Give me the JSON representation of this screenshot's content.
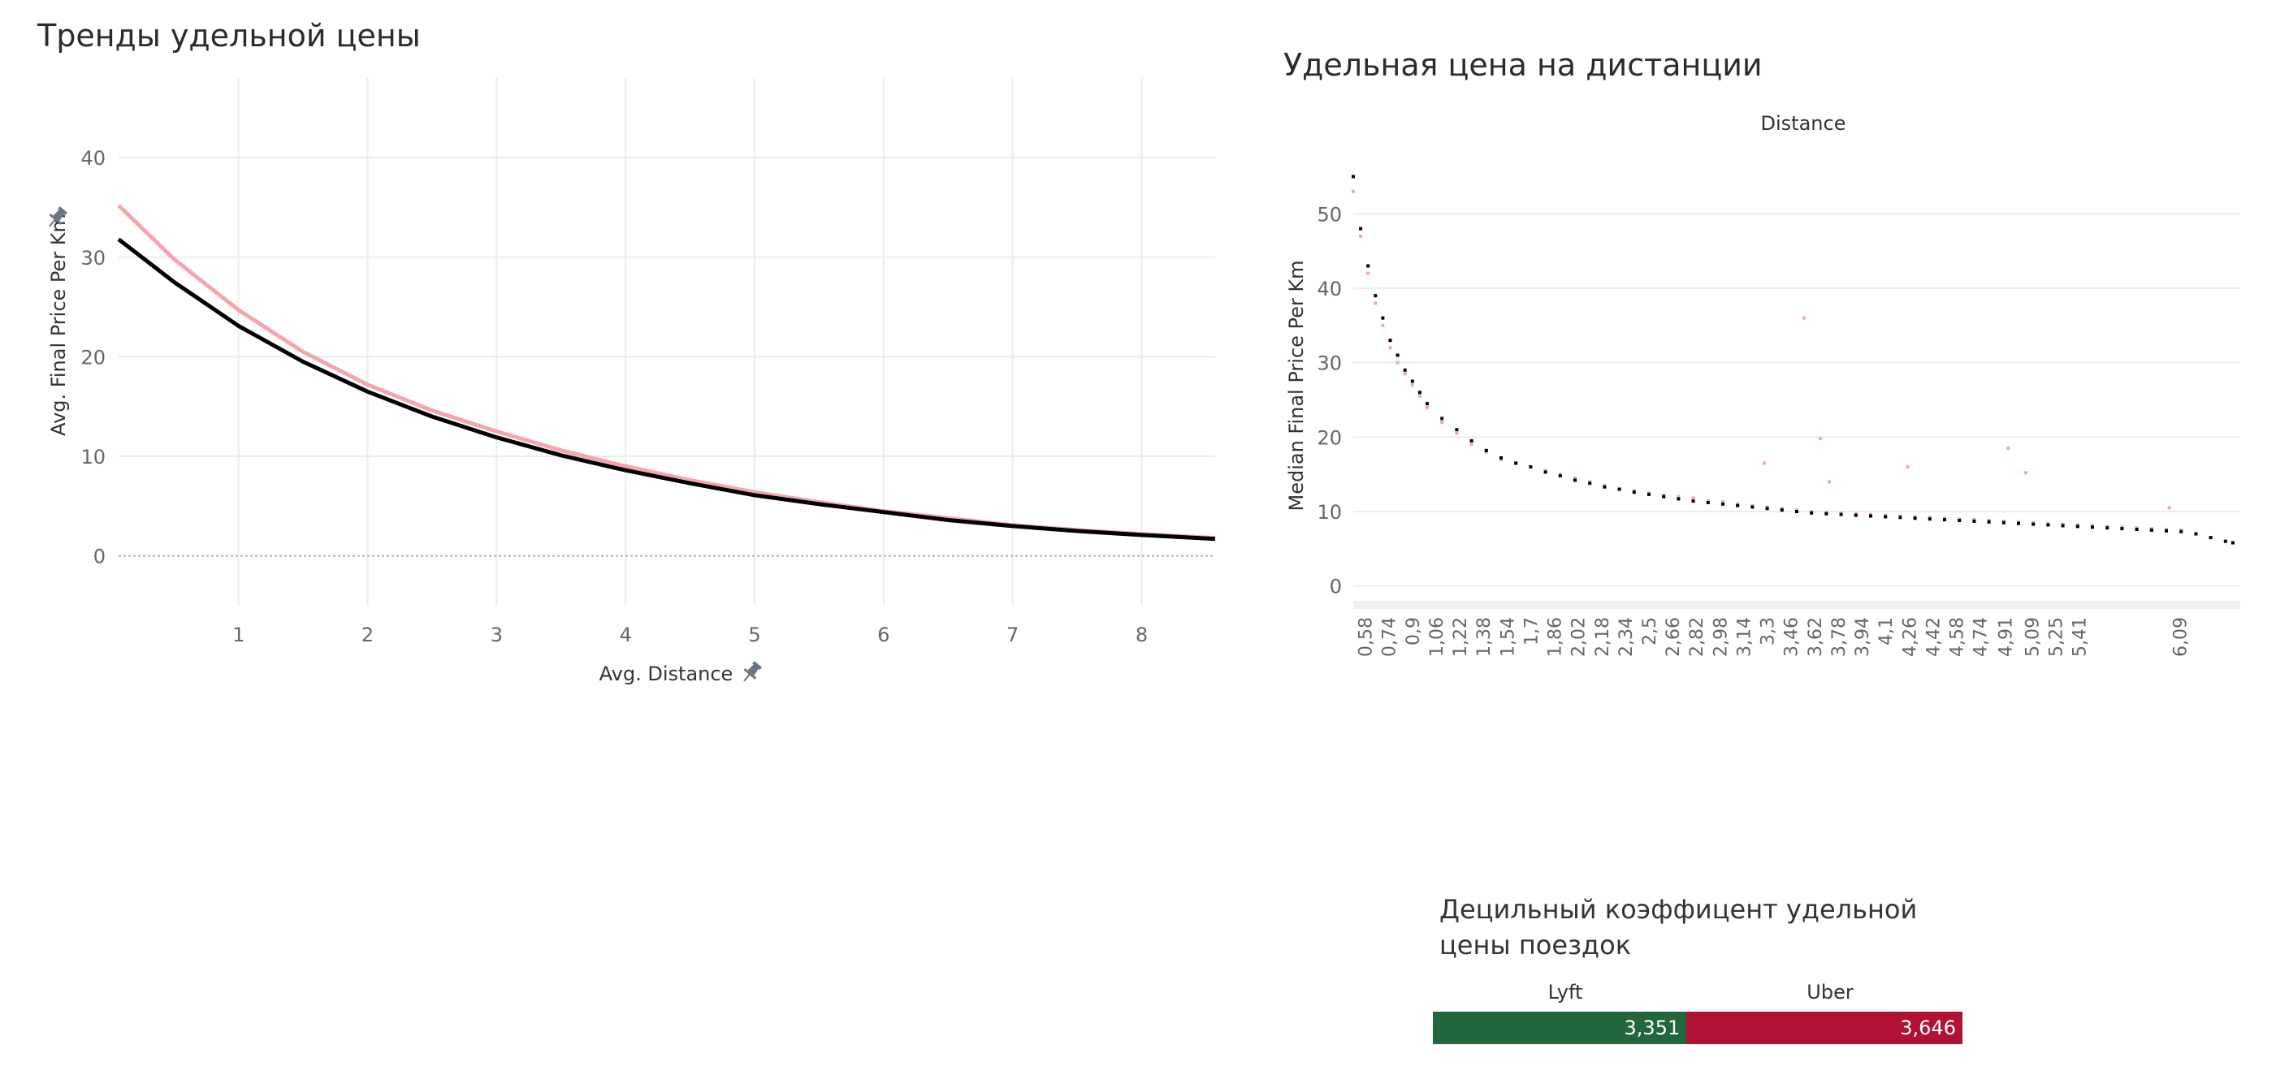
{
  "colors": {
    "lyft": "#f4a5ae",
    "uber": "#000000",
    "lyft_bar": "#22663e",
    "uber_bar": "#b01236",
    "pin": "#6b7585"
  },
  "icons": [
    "pin-icon"
  ],
  "chart_data": [
    {
      "type": "line",
      "title": "Тренды удельной цены",
      "xlabel": "Avg. Distance",
      "ylabel": "Avg. Final Price Per Km",
      "xlim": [
        0.07,
        8.57
      ],
      "ylim": [
        -5,
        48
      ],
      "x_ticks": [
        "1",
        "2",
        "3",
        "4",
        "5",
        "6",
        "7",
        "8"
      ],
      "y_ticks": [
        "0",
        "10",
        "20",
        "30",
        "40"
      ],
      "grid": true,
      "reference_line_y": 0,
      "series": [
        {
          "color": "#f4a5ae",
          "x": [
            0.07,
            0.5,
            1,
            1.5,
            2,
            2.5,
            3,
            3.5,
            4,
            4.5,
            5,
            5.5,
            6,
            6.5,
            7,
            7.5,
            8,
            8.57
          ],
          "y": [
            35.2,
            29.8,
            24.7,
            20.5,
            17.2,
            14.6,
            12.5,
            10.6,
            9.0,
            7.6,
            6.4,
            5.4,
            4.5,
            3.8,
            3.1,
            2.6,
            2.2,
            1.8
          ]
        },
        {
          "color": "#000000",
          "x": [
            0.07,
            0.5,
            1,
            1.5,
            2,
            2.5,
            3,
            3.5,
            4,
            4.5,
            5,
            5.5,
            6,
            6.5,
            7,
            7.5,
            8,
            8.57
          ],
          "y": [
            31.8,
            27.5,
            23.1,
            19.5,
            16.5,
            14.0,
            11.9,
            10.1,
            8.6,
            7.3,
            6.1,
            5.2,
            4.4,
            3.6,
            3.0,
            2.5,
            2.1,
            1.7
          ]
        }
      ]
    },
    {
      "type": "scatter",
      "title": "Удельная цена на дистанции",
      "header": "Distance",
      "ylabel": "Median Final Price Per Km",
      "xlim": [
        0.5,
        6.5
      ],
      "ylim": [
        -2,
        58
      ],
      "y_ticks": [
        "0",
        "10",
        "20",
        "30",
        "40",
        "50"
      ],
      "x_ticks": [
        "0,58",
        "0,74",
        "0,9",
        "1,06",
        "1,22",
        "1,38",
        "1,54",
        "1,7",
        "1,86",
        "2,02",
        "2,18",
        "2,34",
        "2,5",
        "2,66",
        "2,82",
        "2,98",
        "3,14",
        "3,3",
        "3,46",
        "3,62",
        "3,78",
        "3,94",
        "4,1",
        "4,26",
        "4,42",
        "4,58",
        "4,74",
        "4,91",
        "5,09",
        "5,25",
        "5,41",
        "6,09"
      ],
      "x_tick_values": [
        0.58,
        0.74,
        0.9,
        1.06,
        1.22,
        1.38,
        1.54,
        1.7,
        1.86,
        2.02,
        2.18,
        2.34,
        2.5,
        2.66,
        2.82,
        2.98,
        3.14,
        3.3,
        3.46,
        3.62,
        3.78,
        3.94,
        4.1,
        4.26,
        4.42,
        4.58,
        4.74,
        4.91,
        5.09,
        5.25,
        5.41,
        6.09
      ],
      "grid": true,
      "series": [
        {
          "color": "#f4a5ae",
          "x": [
            0.5,
            0.55,
            0.6,
            0.65,
            0.7,
            0.75,
            0.8,
            0.85,
            0.9,
            0.95,
            1.0,
            1.1,
            1.2,
            1.3,
            1.4,
            1.5,
            1.6,
            1.7,
            1.8,
            1.9,
            2.0,
            2.1,
            2.2,
            2.3,
            2.4,
            2.5,
            2.6,
            2.7,
            2.8,
            2.9,
            3.0,
            3.1,
            3.2,
            3.3,
            3.4,
            3.5,
            3.6,
            3.7,
            3.8,
            3.9,
            4.0,
            4.1,
            4.2,
            4.3,
            4.4,
            4.5,
            4.6,
            4.7,
            4.8,
            4.9,
            5.0,
            5.1,
            5.2,
            5.3,
            5.4,
            5.5,
            5.6,
            5.7,
            5.8,
            5.9,
            6.0,
            6.1,
            3.55,
            3.28,
            3.66,
            3.72,
            4.25,
            4.93,
            5.05,
            6.02
          ],
          "y": [
            53,
            47,
            42,
            38,
            35,
            32,
            30,
            28.5,
            27,
            25.5,
            24,
            22,
            20.5,
            19,
            18,
            17,
            16.5,
            16,
            15.5,
            15,
            14.5,
            14,
            13.5,
            13,
            12.8,
            12.5,
            12.2,
            12,
            11.8,
            11.5,
            11.3,
            11,
            10.8,
            10.6,
            10.4,
            10.2,
            10,
            9.9,
            9.8,
            9.7,
            9.6,
            9.5,
            9.4,
            9.3,
            9.2,
            9.1,
            9.0,
            8.9,
            8.8,
            8.7,
            8.6,
            8.5,
            8.4,
            8.3,
            8.2,
            8.1,
            8.0,
            7.9,
            7.8,
            7.7,
            7.6,
            7.5,
            36,
            16.5,
            19.8,
            14,
            16,
            18.5,
            15.2,
            10.5
          ]
        },
        {
          "color": "#000000",
          "x": [
            0.5,
            0.55,
            0.6,
            0.65,
            0.7,
            0.75,
            0.8,
            0.85,
            0.9,
            0.95,
            1.0,
            1.1,
            1.2,
            1.3,
            1.4,
            1.5,
            1.6,
            1.7,
            1.8,
            1.9,
            2.0,
            2.1,
            2.2,
            2.3,
            2.4,
            2.5,
            2.6,
            2.7,
            2.8,
            2.9,
            3.0,
            3.1,
            3.2,
            3.3,
            3.4,
            3.5,
            3.6,
            3.7,
            3.8,
            3.9,
            4.0,
            4.1,
            4.2,
            4.3,
            4.4,
            4.5,
            4.6,
            4.7,
            4.8,
            4.9,
            5.0,
            5.1,
            5.2,
            5.3,
            5.4,
            5.5,
            5.6,
            5.7,
            5.8,
            5.9,
            6.0,
            6.1,
            6.2,
            6.3,
            6.4,
            6.45
          ],
          "y": [
            55,
            48,
            43,
            39,
            36,
            33,
            31,
            29,
            27.5,
            26,
            24.5,
            22.5,
            21,
            19.5,
            18.2,
            17.2,
            16.5,
            16,
            15.3,
            14.8,
            14.2,
            13.8,
            13.3,
            13,
            12.6,
            12.3,
            12,
            11.7,
            11.4,
            11.2,
            11,
            10.8,
            10.6,
            10.4,
            10.2,
            10,
            9.8,
            9.7,
            9.6,
            9.5,
            9.4,
            9.3,
            9.2,
            9.1,
            9.0,
            8.9,
            8.8,
            8.7,
            8.6,
            8.5,
            8.4,
            8.3,
            8.2,
            8.1,
            8.0,
            7.9,
            7.8,
            7.7,
            7.6,
            7.5,
            7.4,
            7.3,
            7.0,
            6.5,
            6.0,
            5.8
          ]
        }
      ]
    },
    {
      "type": "bar",
      "title": "Децильный коэффицент удельной цены поездок",
      "categories": [
        "Lyft",
        "Uber"
      ],
      "values": [
        3.351,
        3.646
      ],
      "value_labels": [
        "3,351",
        "3,646"
      ],
      "colors": [
        "#22663e",
        "#b01236"
      ]
    }
  ]
}
